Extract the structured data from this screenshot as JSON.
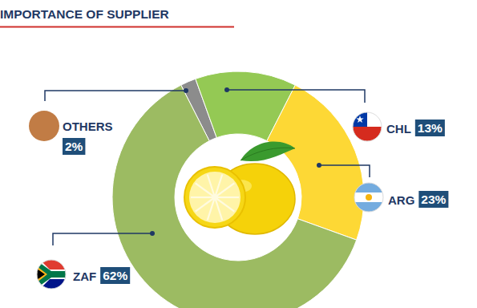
{
  "chart_data": {
    "type": "donut",
    "title": "IMPORTANCE OF SUPPLIER",
    "categories": [
      "OTHERS",
      "CHL",
      "ARG",
      "ZAF"
    ],
    "values": [
      2,
      13,
      23,
      62
    ],
    "value_labels": [
      "2%",
      "13%",
      "23%",
      "62%"
    ],
    "colors": [
      "#8c8c8c",
      "#94c954",
      "#fdd835",
      "#9cbb62"
    ],
    "data_labels": true
  }
}
